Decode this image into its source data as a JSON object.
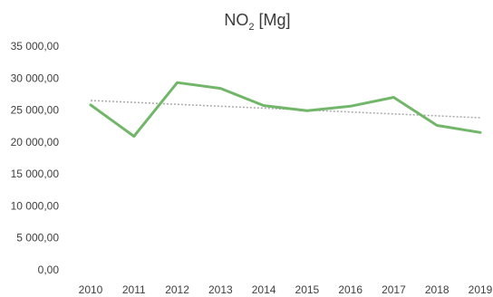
{
  "chart_data": {
    "type": "line",
    "title": {
      "prefix": "NO",
      "subscript": "2",
      "suffix": " [Mg]"
    },
    "xlabel": "",
    "ylabel": "",
    "categories": [
      "2010",
      "2011",
      "2012",
      "2013",
      "2014",
      "2015",
      "2016",
      "2017",
      "2018",
      "2019"
    ],
    "y_tick_values": [
      0,
      5000,
      10000,
      15000,
      20000,
      25000,
      30000,
      35000
    ],
    "y_tick_labels": [
      "0,00",
      "5 000,00",
      "10 000,00",
      "15 000,00",
      "20 000,00",
      "25 000,00",
      "30 000,00",
      "35 000,00"
    ],
    "ylim": [
      0,
      35000
    ],
    "grid": false,
    "legend": "none",
    "series": [
      {
        "values": [
          25800,
          20900,
          29300,
          28400,
          25700,
          24900,
          25600,
          27000,
          22600,
          21500
        ],
        "color": "#72b66a",
        "style": "solid"
      }
    ],
    "trendline": {
      "type": "linear",
      "color": "#a9a9a9",
      "style": "dotted",
      "start_value": 26500,
      "end_value": 23800
    }
  }
}
